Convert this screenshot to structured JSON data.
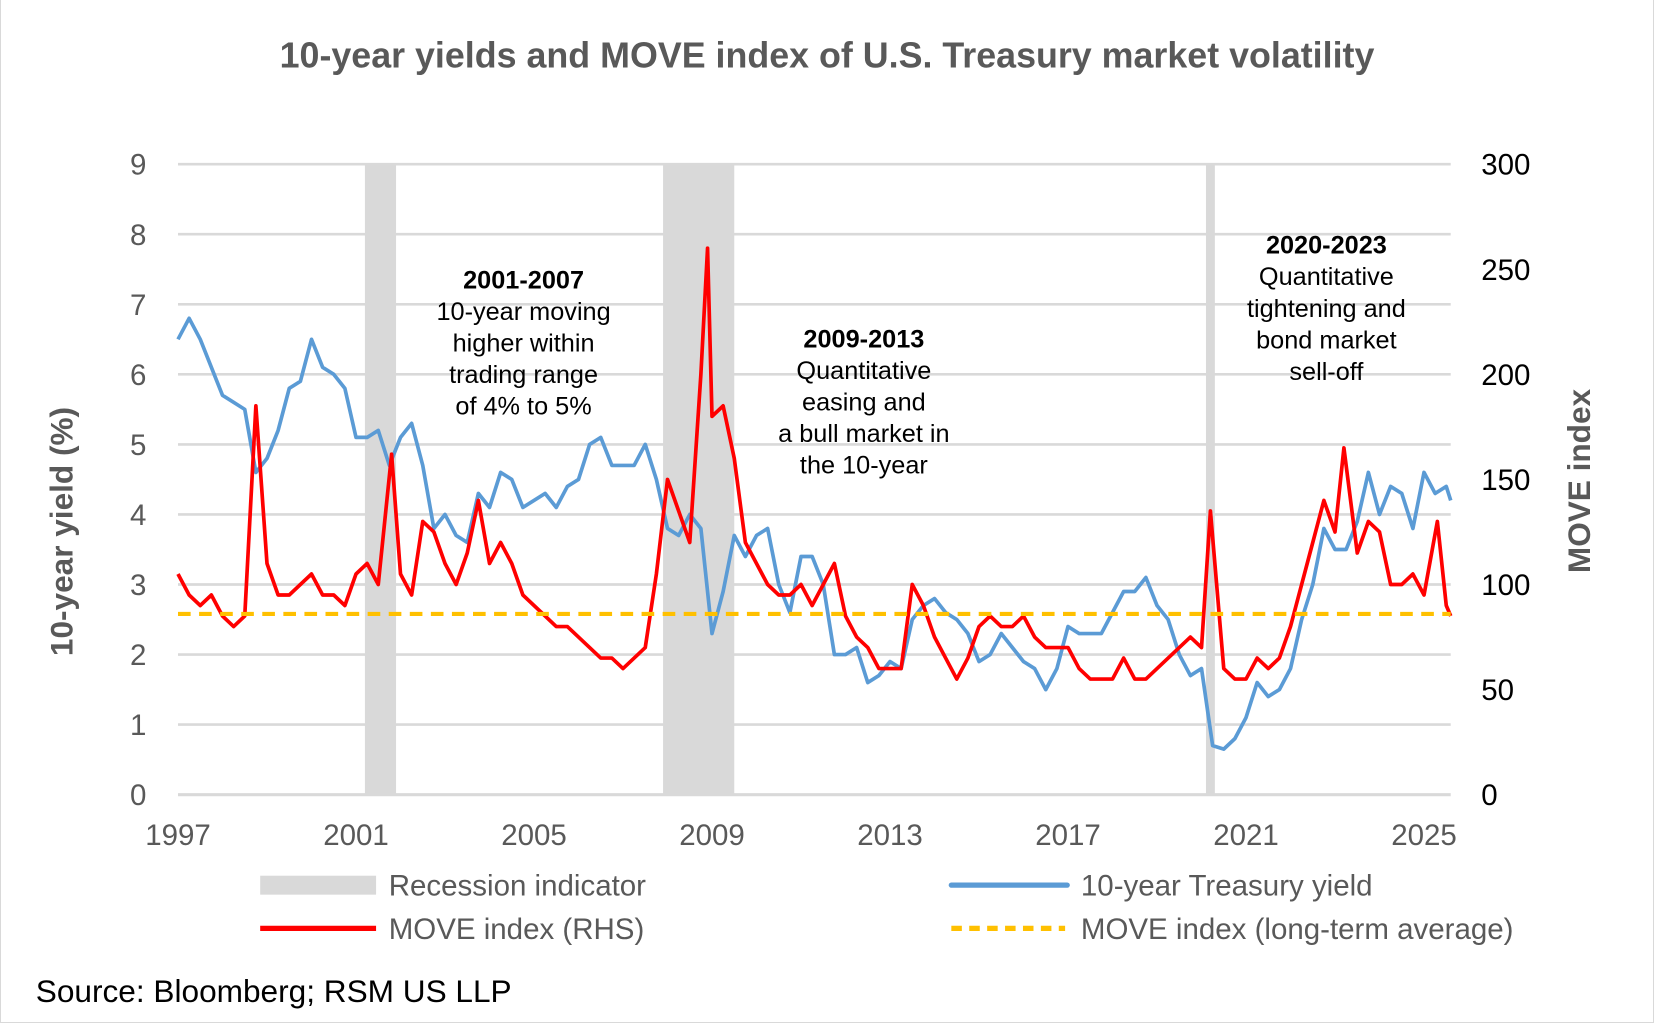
{
  "chart_data": {
    "type": "line",
    "title": "10-year yields and MOVE index of U.S. Treasury market volatility",
    "ylabel": "10-year yield (%)",
    "y2label": "MOVE index",
    "xlim": [
      1997,
      2025.6
    ],
    "ylim": [
      0,
      9
    ],
    "y2lim": [
      0,
      300
    ],
    "grid": true,
    "legend_placement": "bottom",
    "x_ticks": [
      "1997",
      "2001",
      "2005",
      "2009",
      "2013",
      "2017",
      "2021",
      "2025"
    ],
    "y_ticks": [
      "0",
      "1",
      "2",
      "3",
      "4",
      "5",
      "6",
      "7",
      "8",
      "9"
    ],
    "y2_ticks": [
      "0",
      "50",
      "100",
      "150",
      "200",
      "250",
      "300"
    ],
    "colors": {
      "yield": "#5b9bd5",
      "move": "#ff0000",
      "average": "#ffc000",
      "recession": "#d9d9d9",
      "grid": "#d9d9d9"
    },
    "recessions": [
      [
        2001.2,
        2001.9
      ],
      [
        2007.9,
        2009.5
      ],
      [
        2020.1,
        2020.3
      ]
    ],
    "move_long_term_average": 86,
    "series": [
      {
        "name": "10-year Treasury yield",
        "axis": "left",
        "x": [
          1997,
          1997.25,
          1997.5,
          1997.75,
          1998,
          1998.25,
          1998.5,
          1998.75,
          1999,
          1999.25,
          1999.5,
          1999.75,
          2000,
          2000.25,
          2000.5,
          2000.75,
          2001,
          2001.25,
          2001.5,
          2001.75,
          2002,
          2002.25,
          2002.5,
          2002.75,
          2003,
          2003.25,
          2003.5,
          2003.75,
          2004,
          2004.25,
          2004.5,
          2004.75,
          2005,
          2005.25,
          2005.5,
          2005.75,
          2006,
          2006.25,
          2006.5,
          2006.75,
          2007,
          2007.25,
          2007.5,
          2007.75,
          2008,
          2008.25,
          2008.5,
          2008.75,
          2009,
          2009.25,
          2009.5,
          2009.75,
          2010,
          2010.25,
          2010.5,
          2010.75,
          2011,
          2011.25,
          2011.5,
          2011.75,
          2012,
          2012.25,
          2012.5,
          2012.75,
          2013,
          2013.25,
          2013.5,
          2013.75,
          2014,
          2014.25,
          2014.5,
          2014.75,
          2015,
          2015.25,
          2015.5,
          2015.75,
          2016,
          2016.25,
          2016.5,
          2016.75,
          2017,
          2017.25,
          2017.5,
          2017.75,
          2018,
          2018.25,
          2018.5,
          2018.75,
          2019,
          2019.25,
          2019.5,
          2019.75,
          2020,
          2020.25,
          2020.5,
          2020.75,
          2021,
          2021.25,
          2021.5,
          2021.75,
          2022,
          2022.25,
          2022.5,
          2022.75,
          2023,
          2023.25,
          2023.5,
          2023.75,
          2024,
          2024.25,
          2024.5,
          2024.75,
          2025,
          2025.25,
          2025.5,
          2025.6
        ],
        "values": [
          6.5,
          6.8,
          6.5,
          6.1,
          5.7,
          5.6,
          5.5,
          4.6,
          4.8,
          5.2,
          5.8,
          5.9,
          6.5,
          6.1,
          6.0,
          5.8,
          5.1,
          5.1,
          5.2,
          4.7,
          5.1,
          5.3,
          4.7,
          3.8,
          4.0,
          3.7,
          3.6,
          4.3,
          4.1,
          4.6,
          4.5,
          4.1,
          4.2,
          4.3,
          4.1,
          4.4,
          4.5,
          5.0,
          5.1,
          4.7,
          4.7,
          4.7,
          5.0,
          4.5,
          3.8,
          3.7,
          4.0,
          3.8,
          2.3,
          2.9,
          3.7,
          3.4,
          3.7,
          3.8,
          3.0,
          2.6,
          3.4,
          3.4,
          3.0,
          2.0,
          2.0,
          2.1,
          1.6,
          1.7,
          1.9,
          1.8,
          2.5,
          2.7,
          2.8,
          2.6,
          2.5,
          2.3,
          1.9,
          2.0,
          2.3,
          2.1,
          1.9,
          1.8,
          1.5,
          1.8,
          2.4,
          2.3,
          2.3,
          2.3,
          2.6,
          2.9,
          2.9,
          3.1,
          2.7,
          2.5,
          2.0,
          1.7,
          1.8,
          0.7,
          0.65,
          0.8,
          1.1,
          1.6,
          1.4,
          1.5,
          1.8,
          2.5,
          3.0,
          3.8,
          3.5,
          3.5,
          3.9,
          4.6,
          4.0,
          4.4,
          4.3,
          3.8,
          4.6,
          4.3,
          4.4,
          4.2
        ]
      },
      {
        "name": "MOVE index (RHS)",
        "axis": "right",
        "x": [
          1997,
          1997.25,
          1997.5,
          1997.75,
          1998,
          1998.25,
          1998.5,
          1998.75,
          1999,
          1999.25,
          1999.5,
          1999.75,
          2000,
          2000.25,
          2000.5,
          2000.75,
          2001,
          2001.25,
          2001.5,
          2001.8,
          2002,
          2002.25,
          2002.5,
          2002.75,
          2003,
          2003.25,
          2003.5,
          2003.75,
          2004,
          2004.25,
          2004.5,
          2004.75,
          2005,
          2005.25,
          2005.5,
          2005.75,
          2006,
          2006.25,
          2006.5,
          2006.75,
          2007,
          2007.25,
          2007.5,
          2007.75,
          2008,
          2008.25,
          2008.5,
          2008.75,
          2008.9,
          2009,
          2009.25,
          2009.5,
          2009.75,
          2010,
          2010.25,
          2010.5,
          2010.75,
          2011,
          2011.25,
          2011.5,
          2011.75,
          2012,
          2012.25,
          2012.5,
          2012.75,
          2013,
          2013.25,
          2013.5,
          2013.75,
          2014,
          2014.25,
          2014.5,
          2014.75,
          2015,
          2015.25,
          2015.5,
          2015.75,
          2016,
          2016.25,
          2016.5,
          2016.75,
          2017,
          2017.25,
          2017.5,
          2017.75,
          2018,
          2018.25,
          2018.5,
          2018.75,
          2019,
          2019.25,
          2019.5,
          2019.75,
          2020,
          2020.2,
          2020.5,
          2020.75,
          2021,
          2021.25,
          2021.5,
          2021.75,
          2022,
          2022.25,
          2022.5,
          2022.75,
          2023,
          2023.2,
          2023.5,
          2023.75,
          2024,
          2024.25,
          2024.5,
          2024.75,
          2025,
          2025.3,
          2025.5,
          2025.6
        ],
        "values": [
          105,
          95,
          90,
          95,
          85,
          80,
          85,
          185,
          110,
          95,
          95,
          100,
          105,
          95,
          95,
          90,
          105,
          110,
          100,
          162,
          105,
          95,
          130,
          125,
          110,
          100,
          115,
          140,
          110,
          120,
          110,
          95,
          90,
          85,
          80,
          80,
          75,
          70,
          65,
          65,
          60,
          65,
          70,
          105,
          150,
          135,
          120,
          200,
          260,
          180,
          185,
          160,
          120,
          110,
          100,
          95,
          95,
          100,
          90,
          100,
          110,
          85,
          75,
          70,
          60,
          60,
          60,
          100,
          90,
          75,
          65,
          55,
          65,
          80,
          85,
          80,
          80,
          85,
          75,
          70,
          70,
          70,
          60,
          55,
          55,
          55,
          65,
          55,
          55,
          60,
          65,
          70,
          75,
          70,
          135,
          60,
          55,
          55,
          65,
          60,
          65,
          80,
          100,
          120,
          140,
          125,
          165,
          115,
          130,
          125,
          100,
          100,
          105,
          95,
          130,
          90,
          85
        ]
      },
      {
        "name": "MOVE index (long-term average)",
        "axis": "right",
        "constant": 86
      }
    ],
    "legend": [
      {
        "label": "Recession indicator",
        "style": "band"
      },
      {
        "label": "10-year Treasury yield",
        "style": "line"
      },
      {
        "label": "MOVE index (RHS)",
        "style": "line"
      },
      {
        "label": "MOVE index (long-term average)",
        "style": "dashed"
      }
    ],
    "annotations": [
      {
        "heading": "2001-2007",
        "lines": [
          "10-year moving",
          "higher within",
          "trading range",
          "of 4% to 5%"
        ]
      },
      {
        "heading": "2009-2013",
        "lines": [
          "Quantitative",
          "easing and",
          "a bull market in",
          "the 10-year"
        ]
      },
      {
        "heading": "2020-2023",
        "lines": [
          "Quantitative",
          "tightening and",
          "bond market",
          "sell-off"
        ]
      }
    ],
    "source": "Source: Bloomberg; RSM US LLP"
  }
}
